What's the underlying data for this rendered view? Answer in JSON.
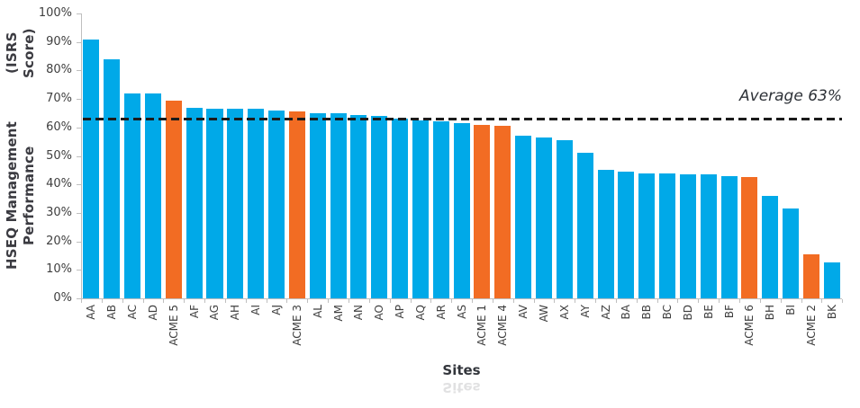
{
  "chart_data": {
    "type": "bar",
    "title": "",
    "xlabel": "Sites",
    "ylabel": "HSEQ Management Performance (ISRS Score)",
    "ylabel_line1": "HSEQ Management Performance",
    "ylabel_line2": "(ISRS Score)",
    "ylim": [
      0,
      100
    ],
    "ytick_step": 10,
    "ytick_labels": [
      "0%",
      "10%",
      "20%",
      "30%",
      "40%",
      "50%",
      "60%",
      "70%",
      "80%",
      "90%",
      "100%"
    ],
    "grid": false,
    "legend": false,
    "categories": [
      "AA",
      "AB",
      "AC",
      "AD",
      "ACME 5",
      "AF",
      "AG",
      "AH",
      "AI",
      "AJ",
      "ACME 3",
      "AL",
      "AM",
      "AN",
      "AO",
      "AP",
      "AQ",
      "AR",
      "AS",
      "ACME 1",
      "ACME 4",
      "AV",
      "AW",
      "AX",
      "AY",
      "AZ",
      "BA",
      "BB",
      "BC",
      "BD",
      "BE",
      "BF",
      "ACME 6",
      "BH",
      "BI",
      "ACME 2",
      "BK"
    ],
    "values": [
      91,
      84,
      72,
      72,
      69.5,
      67,
      66.5,
      66.5,
      66.5,
      66,
      65.5,
      65,
      65,
      64.5,
      64,
      63,
      62.5,
      62,
      61.5,
      61,
      60.5,
      57,
      56.5,
      55.5,
      51,
      45,
      44.5,
      44,
      44,
      43.5,
      43.5,
      43,
      42.5,
      36,
      31.5,
      15.5,
      12.5
    ],
    "highlight_categories": [
      "ACME 5",
      "ACME 3",
      "ACME 1",
      "ACME 4",
      "ACME 6",
      "ACME 2"
    ],
    "average_line": {
      "value": 63,
      "label": "Average 63%",
      "style": "dashed"
    },
    "colors": {
      "bar_default": "#00A9E8",
      "bar_highlight": "#F26C23",
      "axis": "#BFBFBF",
      "text": "#3F3F3F",
      "average_line": "#1B1B1B"
    }
  }
}
